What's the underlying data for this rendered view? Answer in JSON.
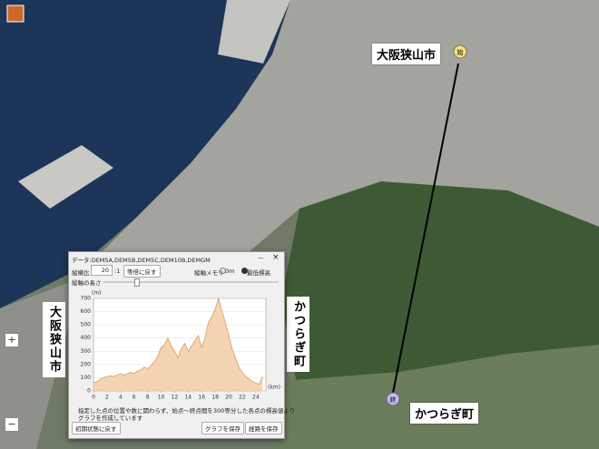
{
  "map": {
    "start_label": "大阪狭山市",
    "end_label": "かつらぎ町",
    "start_pin": "始",
    "end_pin": "終",
    "zoom_in": "+",
    "zoom_out": "−"
  },
  "dialog": {
    "title": "データ:DEM5A,DEM5B,DEM5C,DEM10B,DEMGM",
    "minimize": "—",
    "close": "×",
    "ratio_label": "縦横比",
    "ratio_value": "20",
    "ratio_unit": ":1",
    "reset_ratio": "等倍に戻す",
    "axis_memory_label": "縦軸メモリ",
    "option_zero": "0m",
    "option_min": "最低標高",
    "axis_length_label": "縦軸の長さ",
    "note_lines": [
      "指定した点の位置や数に関わらず、始点～終点間を300等分した各点の標高値より",
      "グラフを作成しています"
    ],
    "reset_button": "初期状態に戻す",
    "save_graph_button": "グラフを保存",
    "save_route_button": "経路を保存",
    "left_side_label": "大阪狭山市",
    "right_side_label": "かつらぎ町"
  },
  "chart_data": {
    "type": "area",
    "y_label": "(m)",
    "x_label": "(km)",
    "x": [
      0,
      0.5,
      1,
      1.5,
      2,
      2.5,
      3,
      3.5,
      4,
      4.5,
      5,
      5.5,
      6,
      6.5,
      7,
      7.5,
      8,
      8.5,
      9,
      9.5,
      10,
      10.5,
      11,
      11.5,
      12,
      12.5,
      13,
      13.5,
      14,
      14.5,
      15,
      15.5,
      16,
      16.5,
      17,
      17.5,
      18,
      18.5,
      19,
      19.5,
      20,
      20.5,
      21,
      21.5,
      22,
      22.5,
      23,
      23.5,
      24,
      24.5,
      25
    ],
    "values": [
      60,
      70,
      90,
      100,
      110,
      115,
      110,
      120,
      130,
      120,
      130,
      140,
      130,
      150,
      160,
      180,
      170,
      190,
      220,
      260,
      330,
      350,
      400,
      340,
      300,
      250,
      320,
      360,
      300,
      340,
      380,
      420,
      330,
      400,
      520,
      560,
      620,
      700,
      600,
      520,
      420,
      320,
      250,
      180,
      140,
      110,
      90,
      70,
      60,
      50,
      110
    ],
    "color": "#f3c9a0",
    "line_color": "#d99a64",
    "xlim": [
      0,
      25.5
    ],
    "ylim": [
      0,
      700
    ],
    "xticks": [
      0,
      2,
      4,
      6,
      8,
      10,
      12,
      14,
      16,
      18,
      20,
      22,
      24
    ],
    "yticks": [
      0,
      100,
      200,
      300,
      400,
      500,
      600,
      700
    ],
    "grid": true
  }
}
